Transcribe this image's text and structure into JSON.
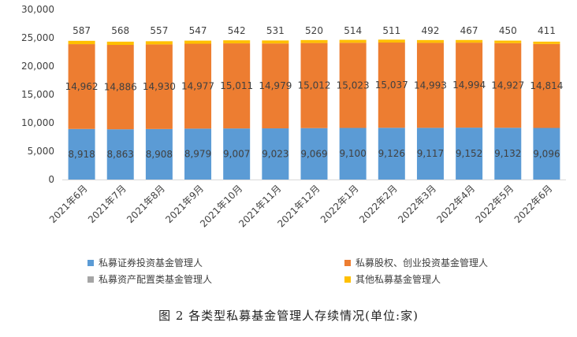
{
  "chart_data": {
    "type": "bar",
    "stacked": true,
    "categories": [
      "2021年6月",
      "2021年7月",
      "2021年8月",
      "2021年9月",
      "2021年10月",
      "2021年11月",
      "2021年12月",
      "2022年1月",
      "2022年2月",
      "2022年3月",
      "2022年4月",
      "2022年5月",
      "2022年6月"
    ],
    "series": [
      {
        "name": "私募证券投资基金管理人",
        "color": "#5b9bd5",
        "values": [
          8918,
          8863,
          8908,
          8979,
          9007,
          9023,
          9069,
          9100,
          9126,
          9117,
          9152,
          9132,
          9096
        ],
        "labels": [
          "8,918",
          "8,863",
          "8,908",
          "8,979",
          "9,007",
          "9,023",
          "9,069",
          "9,100",
          "9,126",
          "9,117",
          "9,152",
          "9,132",
          "9,096"
        ]
      },
      {
        "name": "私募股权、创业投资基金管理人",
        "color": "#ed7d31",
        "values": [
          14962,
          14886,
          14930,
          14977,
          15011,
          14979,
          15012,
          15023,
          15037,
          14993,
          14994,
          14927,
          14814
        ],
        "labels": [
          "14,962",
          "14,886",
          "14,930",
          "14,977",
          "15,011",
          "14,979",
          "15,012",
          "15,023",
          "15,037",
          "14,993",
          "14,994",
          "14,927",
          "14,814"
        ]
      },
      {
        "name": "私募资产配置类基金管理人",
        "color": "#a5a5a5",
        "values": [
          0,
          0,
          0,
          0,
          0,
          0,
          0,
          0,
          0,
          0,
          0,
          0,
          0
        ]
      },
      {
        "name": "其他私募基金管理人",
        "color": "#ffc000",
        "values": [
          587,
          568,
          557,
          547,
          542,
          531,
          520,
          514,
          511,
          492,
          467,
          450,
          411
        ],
        "labels": [
          "587",
          "568",
          "557",
          "547",
          "542",
          "531",
          "520",
          "514",
          "511",
          "492",
          "467",
          "450",
          "411"
        ]
      }
    ],
    "ylim": [
      0,
      30000
    ],
    "yticks": [
      0,
      5000,
      10000,
      15000,
      20000,
      25000,
      30000
    ],
    "ytick_labels": [
      "0",
      "5,000",
      "10,000",
      "15,000",
      "20,000",
      "25,000",
      "30,000"
    ],
    "legend_position": "bottom",
    "grid": false
  },
  "caption": "图 2  各类型私募基金管理人存续情况(单位:家)"
}
